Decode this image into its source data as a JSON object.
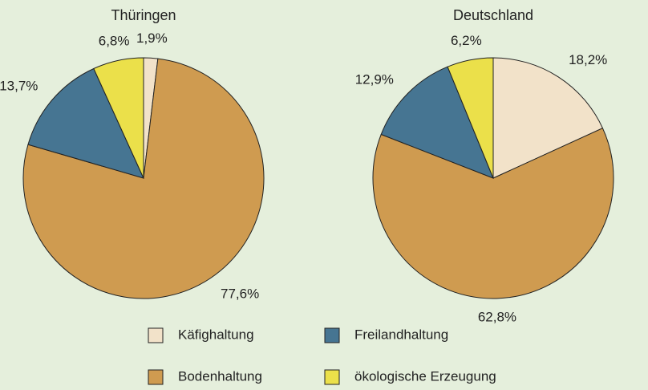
{
  "chart_data": [
    {
      "type": "pie",
      "title": "Thüringen",
      "categories": [
        "Käfighaltung",
        "Bodenhaltung",
        "Freilandhaltung",
        "ökologische Erzeugung"
      ],
      "values": [
        1.9,
        77.6,
        13.7,
        6.8
      ],
      "value_labels": [
        "1,9%",
        "77,6%",
        "13,7%",
        "6,8%"
      ],
      "colors": [
        "#f2e2c9",
        "#cf9b50",
        "#467592",
        "#ebe04a"
      ]
    },
    {
      "type": "pie",
      "title": "Deutschland",
      "categories": [
        "Käfighaltung",
        "Bodenhaltung",
        "Freilandhaltung",
        "ökologische Erzeugung"
      ],
      "values": [
        18.2,
        62.8,
        12.9,
        6.2
      ],
      "value_labels": [
        "18,2%",
        "62,8%",
        "12,9%",
        "6,2%"
      ],
      "colors": [
        "#f2e2c9",
        "#cf9b50",
        "#467592",
        "#ebe04a"
      ]
    }
  ]
}
